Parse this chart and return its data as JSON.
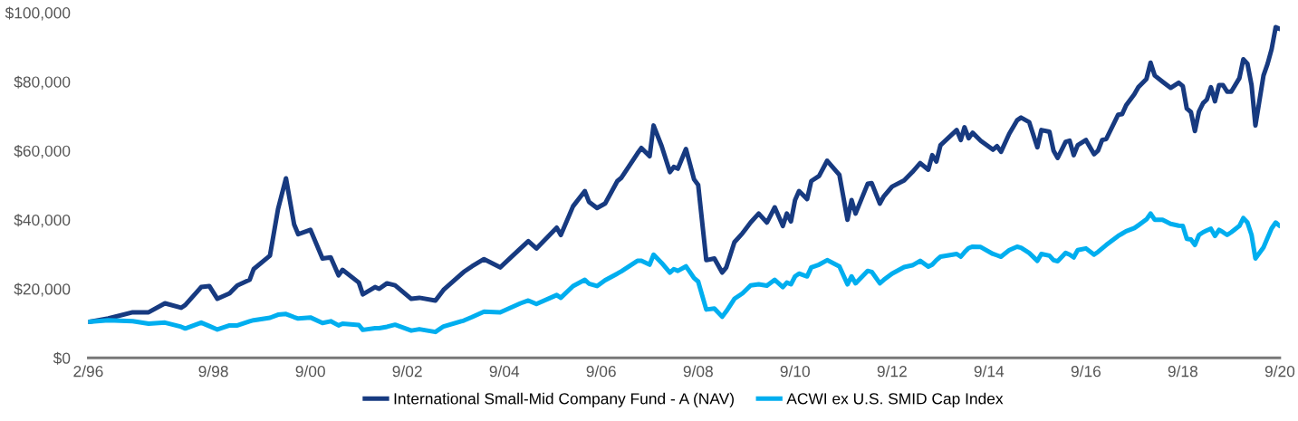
{
  "chart_data": {
    "type": "line",
    "xlim": [
      "1996-02",
      "2020-09"
    ],
    "xticks": [
      {
        "value": "1996-02",
        "label": "2/96"
      },
      {
        "value": "1998-09",
        "label": "9/98"
      },
      {
        "value": "2000-09",
        "label": "9/00"
      },
      {
        "value": "2002-09",
        "label": "9/02"
      },
      {
        "value": "2004-09",
        "label": "9/04"
      },
      {
        "value": "2006-09",
        "label": "9/06"
      },
      {
        "value": "2008-09",
        "label": "9/08"
      },
      {
        "value": "2010-09",
        "label": "9/10"
      },
      {
        "value": "2012-09",
        "label": "9/12"
      },
      {
        "value": "2014-09",
        "label": "9/14"
      },
      {
        "value": "2016-09",
        "label": "9/16"
      },
      {
        "value": "2018-09",
        "label": "9/18"
      },
      {
        "value": "2020-09",
        "label": "9/20"
      }
    ],
    "ylim": [
      0,
      100000
    ],
    "yticks": [
      {
        "value": 0,
        "label": "$0"
      },
      {
        "value": 20000,
        "label": "$20,000"
      },
      {
        "value": 40000,
        "label": "$40,000"
      },
      {
        "value": 60000,
        "label": "$60,000"
      },
      {
        "value": 80000,
        "label": "$80,000"
      },
      {
        "value": 100000,
        "label": "$100,000"
      }
    ],
    "grid": false,
    "legend": "bottom",
    "marker": "none",
    "line_style": "solid",
    "x": [
      "1996-02",
      "1996-07",
      "1997-01",
      "1997-05",
      "1997-09",
      "1998-01",
      "1998-02",
      "1998-06",
      "1998-08",
      "1998-10",
      "1999-01",
      "1999-03",
      "1999-06",
      "1999-07",
      "1999-11",
      "2000-01",
      "2000-03",
      "2000-05",
      "2000-06",
      "2000-09",
      "2000-12",
      "2001-02",
      "2001-04",
      "2001-05",
      "2001-09",
      "2001-10",
      "2002-01",
      "2002-02",
      "2002-04",
      "2002-06",
      "2002-10",
      "2002-12",
      "2003-04",
      "2003-06",
      "2003-11",
      "2004-01",
      "2004-04",
      "2004-08",
      "2005-01",
      "2005-03",
      "2005-05",
      "2005-10",
      "2005-11",
      "2006-02",
      "2006-05",
      "2006-06",
      "2006-08",
      "2006-10",
      "2007-01",
      "2007-02",
      "2007-06",
      "2007-07",
      "2007-09",
      "2007-10",
      "2007-12",
      "2008-02",
      "2008-03",
      "2008-04",
      "2008-06",
      "2008-08",
      "2008-09",
      "2008-11",
      "2009-01",
      "2009-03",
      "2009-04",
      "2009-06",
      "2009-08",
      "2009-10",
      "2009-12",
      "2010-02",
      "2010-04",
      "2010-06",
      "2010-07",
      "2010-08",
      "2010-09",
      "2010-10",
      "2010-12",
      "2011-01",
      "2011-03",
      "2011-05",
      "2011-08",
      "2011-10",
      "2011-11",
      "2011-12",
      "2012-03",
      "2012-04",
      "2012-06",
      "2012-07",
      "2012-09",
      "2012-12",
      "2013-02",
      "2013-04",
      "2013-06",
      "2013-07",
      "2013-08",
      "2013-09",
      "2014-01",
      "2014-02",
      "2014-03",
      "2014-04",
      "2014-05",
      "2014-07",
      "2014-10",
      "2014-11",
      "2014-12",
      "2015-02",
      "2015-04",
      "2015-05",
      "2015-07",
      "2015-09",
      "2015-10",
      "2015-12",
      "2016-01",
      "2016-02",
      "2016-04",
      "2016-05",
      "2016-06",
      "2016-07",
      "2016-09",
      "2016-11",
      "2016-12",
      "2017-01",
      "2017-02",
      "2017-05",
      "2017-06",
      "2017-07",
      "2017-09",
      "2017-10",
      "2017-12",
      "2018-01",
      "2018-02",
      "2018-04",
      "2018-06",
      "2018-08",
      "2018-09",
      "2018-10",
      "2018-11",
      "2018-12",
      "2019-01",
      "2019-02",
      "2019-03",
      "2019-04",
      "2019-05",
      "2019-06",
      "2019-07",
      "2019-08",
      "2019-09",
      "2019-11",
      "2019-12",
      "2020-01",
      "2020-02",
      "2020-03",
      "2020-05",
      "2020-06",
      "2020-07",
      "2020-08",
      "2020-09"
    ],
    "series": [
      {
        "name": "International Small-Mid Company Fund - A (NAV)",
        "color": "#173a80",
        "values": [
          10400,
          11400,
          13200,
          13200,
          15800,
          14500,
          15300,
          20500,
          20800,
          17100,
          18700,
          21000,
          22600,
          25700,
          29600,
          43100,
          52000,
          38700,
          35800,
          37100,
          28800,
          29100,
          23900,
          25500,
          21800,
          18400,
          20500,
          20000,
          21600,
          21000,
          17100,
          17400,
          16600,
          19700,
          24900,
          26500,
          28600,
          26200,
          31700,
          33800,
          31700,
          37700,
          35600,
          43900,
          48300,
          45200,
          43400,
          44700,
          51200,
          52200,
          59200,
          60800,
          58400,
          67300,
          61300,
          53800,
          55300,
          54800,
          60500,
          51700,
          50100,
          28300,
          28800,
          24700,
          26200,
          33500,
          36100,
          39200,
          41800,
          39200,
          43600,
          38200,
          41800,
          39500,
          45700,
          48300,
          46000,
          51200,
          52700,
          57100,
          53000,
          40000,
          45700,
          41800,
          50400,
          50600,
          44700,
          46800,
          49600,
          51400,
          53800,
          56400,
          54500,
          58700,
          56900,
          61600,
          66000,
          63100,
          66800,
          63600,
          65200,
          62900,
          60300,
          61300,
          59700,
          64900,
          68800,
          69600,
          68300,
          61000,
          66000,
          65500,
          60000,
          57900,
          62600,
          62900,
          58700,
          61600,
          63100,
          59000,
          60000,
          63100,
          63400,
          70400,
          70600,
          73200,
          76400,
          78400,
          80800,
          85500,
          81800,
          80000,
          78200,
          79700,
          78700,
          72200,
          71200,
          65700,
          71400,
          73800,
          74800,
          78400,
          74300,
          79000,
          79000,
          77100,
          77100,
          81000,
          86500,
          85200,
          79000,
          67300,
          81800,
          85200,
          89400,
          95800,
          95300
        ]
      },
      {
        "name": "ACWI ex U.S. SMID Cap Index",
        "color": "#00aeef",
        "values": [
          10400,
          10900,
          10600,
          9900,
          10200,
          9000,
          8500,
          10200,
          9200,
          8200,
          9400,
          9400,
          10600,
          10900,
          11600,
          12500,
          12700,
          11800,
          11400,
          11700,
          10100,
          10600,
          9400,
          9900,
          9500,
          8100,
          8600,
          8600,
          9000,
          9600,
          7900,
          8300,
          7500,
          9100,
          10800,
          11800,
          13400,
          13200,
          15800,
          16600,
          15600,
          18200,
          17400,
          20800,
          22600,
          21500,
          20800,
          22500,
          24400,
          25100,
          28100,
          28100,
          27000,
          29900,
          27500,
          24700,
          25700,
          25200,
          26500,
          23100,
          22100,
          14000,
          14300,
          11900,
          13500,
          17100,
          18700,
          21000,
          21300,
          20900,
          22600,
          20500,
          21800,
          21300,
          23600,
          24400,
          23600,
          26200,
          27000,
          28300,
          26500,
          21300,
          23600,
          21600,
          25200,
          24900,
          21600,
          22600,
          24400,
          26300,
          26800,
          28100,
          26400,
          27000,
          28300,
          29300,
          30100,
          29300,
          30600,
          31800,
          32200,
          32100,
          30100,
          29700,
          29300,
          31200,
          32200,
          31900,
          30400,
          28100,
          30100,
          29600,
          28300,
          28000,
          30400,
          29900,
          29100,
          31200,
          31700,
          29900,
          30700,
          31700,
          32700,
          35300,
          36000,
          36700,
          37600,
          38400,
          40100,
          41800,
          40000,
          40000,
          38800,
          38300,
          38200,
          34500,
          34300,
          32700,
          35600,
          36400,
          36900,
          37400,
          35300,
          37100,
          36400,
          35600,
          36400,
          38200,
          40500,
          39200,
          35600,
          28800,
          32000,
          34800,
          37500,
          39200,
          38200
        ]
      }
    ]
  }
}
